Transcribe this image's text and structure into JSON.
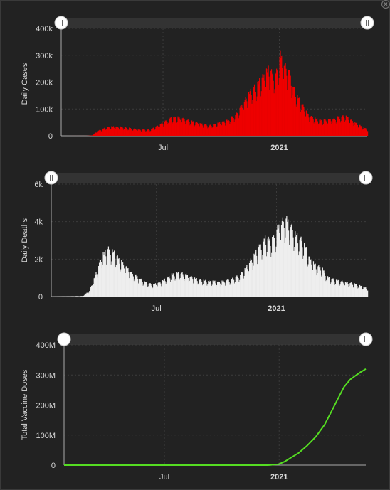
{
  "window": {
    "close_icon": "×"
  },
  "chart_data": [
    {
      "type": "bar",
      "ylabel": "Daily Cases",
      "color": "#ee0000",
      "ylim": [
        0,
        400000
      ],
      "yticks": [
        {
          "value": 0,
          "label": "0"
        },
        {
          "value": 100000,
          "label": "100k"
        },
        {
          "value": 200000,
          "label": "200k"
        },
        {
          "value": 300000,
          "label": "300k"
        },
        {
          "value": 400000,
          "label": "400k"
        }
      ],
      "xticks": [
        {
          "date": "2020-07-01",
          "label": "Jul",
          "bold": false
        },
        {
          "date": "2021-01-01",
          "label": "2021",
          "bold": true
        }
      ],
      "xrange": [
        "2020-01-22",
        "2021-05-20"
      ],
      "series": [
        {
          "points": [
            [
              "2020-01-22",
              0
            ],
            [
              "2020-03-01",
              100
            ],
            [
              "2020-03-10",
              1000
            ],
            [
              "2020-03-20",
              18000
            ],
            [
              "2020-04-01",
              30000
            ],
            [
              "2020-04-10",
              33000
            ],
            [
              "2020-04-25",
              32000
            ],
            [
              "2020-05-10",
              27000
            ],
            [
              "2020-05-25",
              22000
            ],
            [
              "2020-06-10",
              22000
            ],
            [
              "2020-06-25",
              40000
            ],
            [
              "2020-07-10",
              62000
            ],
            [
              "2020-07-20",
              68000
            ],
            [
              "2020-07-31",
              62000
            ],
            [
              "2020-08-15",
              52000
            ],
            [
              "2020-09-01",
              42000
            ],
            [
              "2020-09-12",
              38000
            ],
            [
              "2020-09-25",
              45000
            ],
            [
              "2020-10-10",
              55000
            ],
            [
              "2020-10-25",
              80000
            ],
            [
              "2020-11-05",
              120000
            ],
            [
              "2020-11-15",
              160000
            ],
            [
              "2020-11-25",
              180000
            ],
            [
              "2020-12-05",
              215000
            ],
            [
              "2020-12-15",
              240000
            ],
            [
              "2020-12-25",
              215000
            ],
            [
              "2021-01-02",
              290000
            ],
            [
              "2021-01-08",
              260000
            ],
            [
              "2021-01-15",
              230000
            ],
            [
              "2021-01-25",
              160000
            ],
            [
              "2021-02-05",
              115000
            ],
            [
              "2021-02-15",
              75000
            ],
            [
              "2021-02-28",
              60000
            ],
            [
              "2021-03-10",
              55000
            ],
            [
              "2021-03-25",
              60000
            ],
            [
              "2021-04-05",
              68000
            ],
            [
              "2021-04-15",
              72000
            ],
            [
              "2021-04-25",
              55000
            ],
            [
              "2021-05-05",
              42000
            ],
            [
              "2021-05-12",
              32000
            ],
            [
              "2021-05-20",
              22000
            ]
          ]
        }
      ]
    },
    {
      "type": "bar",
      "ylabel": "Daily Deaths",
      "color": "#eeeeee",
      "ylim": [
        0,
        6000
      ],
      "yticks": [
        {
          "value": 0,
          "label": "0"
        },
        {
          "value": 2000,
          "label": "2k"
        },
        {
          "value": 4000,
          "label": "4k"
        },
        {
          "value": 6000,
          "label": "6k"
        }
      ],
      "xticks": [
        {
          "date": "2020-07-01",
          "label": "Jul",
          "bold": false
        },
        {
          "date": "2021-01-01",
          "label": "2021",
          "bold": true
        }
      ],
      "xrange": [
        "2020-01-22",
        "2021-05-20"
      ],
      "series": [
        {
          "points": [
            [
              "2020-01-22",
              0
            ],
            [
              "2020-03-10",
              30
            ],
            [
              "2020-03-20",
              300
            ],
            [
              "2020-03-28",
              1000
            ],
            [
              "2020-04-08",
              2100
            ],
            [
              "2020-04-18",
              2500
            ],
            [
              "2020-04-28",
              2200
            ],
            [
              "2020-05-10",
              1700
            ],
            [
              "2020-05-25",
              1200
            ],
            [
              "2020-06-10",
              800
            ],
            [
              "2020-06-25",
              600
            ],
            [
              "2020-07-10",
              800
            ],
            [
              "2020-07-25",
              1150
            ],
            [
              "2020-08-05",
              1250
            ],
            [
              "2020-08-20",
              1050
            ],
            [
              "2020-09-05",
              850
            ],
            [
              "2020-09-20",
              800
            ],
            [
              "2020-10-05",
              750
            ],
            [
              "2020-10-20",
              850
            ],
            [
              "2020-11-05",
              1100
            ],
            [
              "2020-11-15",
              1500
            ],
            [
              "2020-11-25",
              2000
            ],
            [
              "2020-12-05",
              2600
            ],
            [
              "2020-12-15",
              3000
            ],
            [
              "2020-12-25",
              2900
            ],
            [
              "2021-01-05",
              3700
            ],
            [
              "2021-01-12",
              4000
            ],
            [
              "2021-01-20",
              3800
            ],
            [
              "2021-01-30",
              3200
            ],
            [
              "2021-02-10",
              2800
            ],
            [
              "2021-02-20",
              2000
            ],
            [
              "2021-03-01",
              1600
            ],
            [
              "2021-03-10",
              1500
            ],
            [
              "2021-03-20",
              1000
            ],
            [
              "2021-04-01",
              850
            ],
            [
              "2021-04-15",
              750
            ],
            [
              "2021-05-01",
              650
            ],
            [
              "2021-05-10",
              550
            ],
            [
              "2021-05-20",
              400
            ]
          ]
        }
      ]
    },
    {
      "type": "line",
      "ylabel": "Total Vaccine Doses",
      "color": "#55dd22",
      "ylim": [
        0,
        400000000
      ],
      "yticks": [
        {
          "value": 0,
          "label": "0"
        },
        {
          "value": 100000000,
          "label": "100M"
        },
        {
          "value": 200000000,
          "label": "200M"
        },
        {
          "value": 300000000,
          "label": "300M"
        },
        {
          "value": 400000000,
          "label": "400M"
        }
      ],
      "xticks": [
        {
          "date": "2020-07-01",
          "label": "Jul",
          "bold": false
        },
        {
          "date": "2021-01-01",
          "label": "2021",
          "bold": true
        }
      ],
      "xrange": [
        "2020-01-22",
        "2021-05-20"
      ],
      "series": [
        {
          "points": [
            [
              "2020-01-22",
              0
            ],
            [
              "2020-12-14",
              0
            ],
            [
              "2020-12-31",
              2800000
            ],
            [
              "2021-01-10",
              12000000
            ],
            [
              "2021-01-20",
              25000000
            ],
            [
              "2021-02-01",
              40000000
            ],
            [
              "2021-02-15",
              65000000
            ],
            [
              "2021-03-01",
              95000000
            ],
            [
              "2021-03-15",
              135000000
            ],
            [
              "2021-03-25",
              175000000
            ],
            [
              "2021-04-05",
              220000000
            ],
            [
              "2021-04-15",
              260000000
            ],
            [
              "2021-04-25",
              285000000
            ],
            [
              "2021-05-05",
              300000000
            ],
            [
              "2021-05-12",
              310000000
            ],
            [
              "2021-05-20",
              320000000
            ]
          ]
        }
      ]
    }
  ]
}
